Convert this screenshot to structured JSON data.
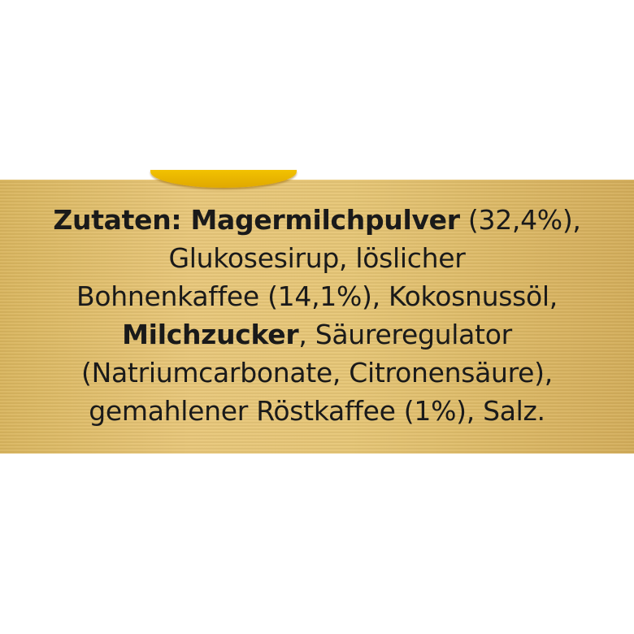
{
  "label": {
    "lines": [
      {
        "bold": "Zutaten: Magermilchpulver",
        "rest": " (32,4%),"
      },
      {
        "bold": "",
        "rest": "Glukosesirup, löslicher"
      },
      {
        "bold": "",
        "rest": "Bohnenkaffee (14,1%), Kokosnussöl,"
      },
      {
        "bold": "Milchzucker",
        "rest": ", Säureregulator"
      },
      {
        "bold": "",
        "rest": "(Natriumcarbonate, Citronensäure),"
      },
      {
        "bold": "",
        "rest": "gemahlener Röstkaffee (1%), Salz."
      }
    ],
    "colors": {
      "background": "#e3c272",
      "text": "#1a1a1a",
      "arc": "#f2c200"
    }
  }
}
